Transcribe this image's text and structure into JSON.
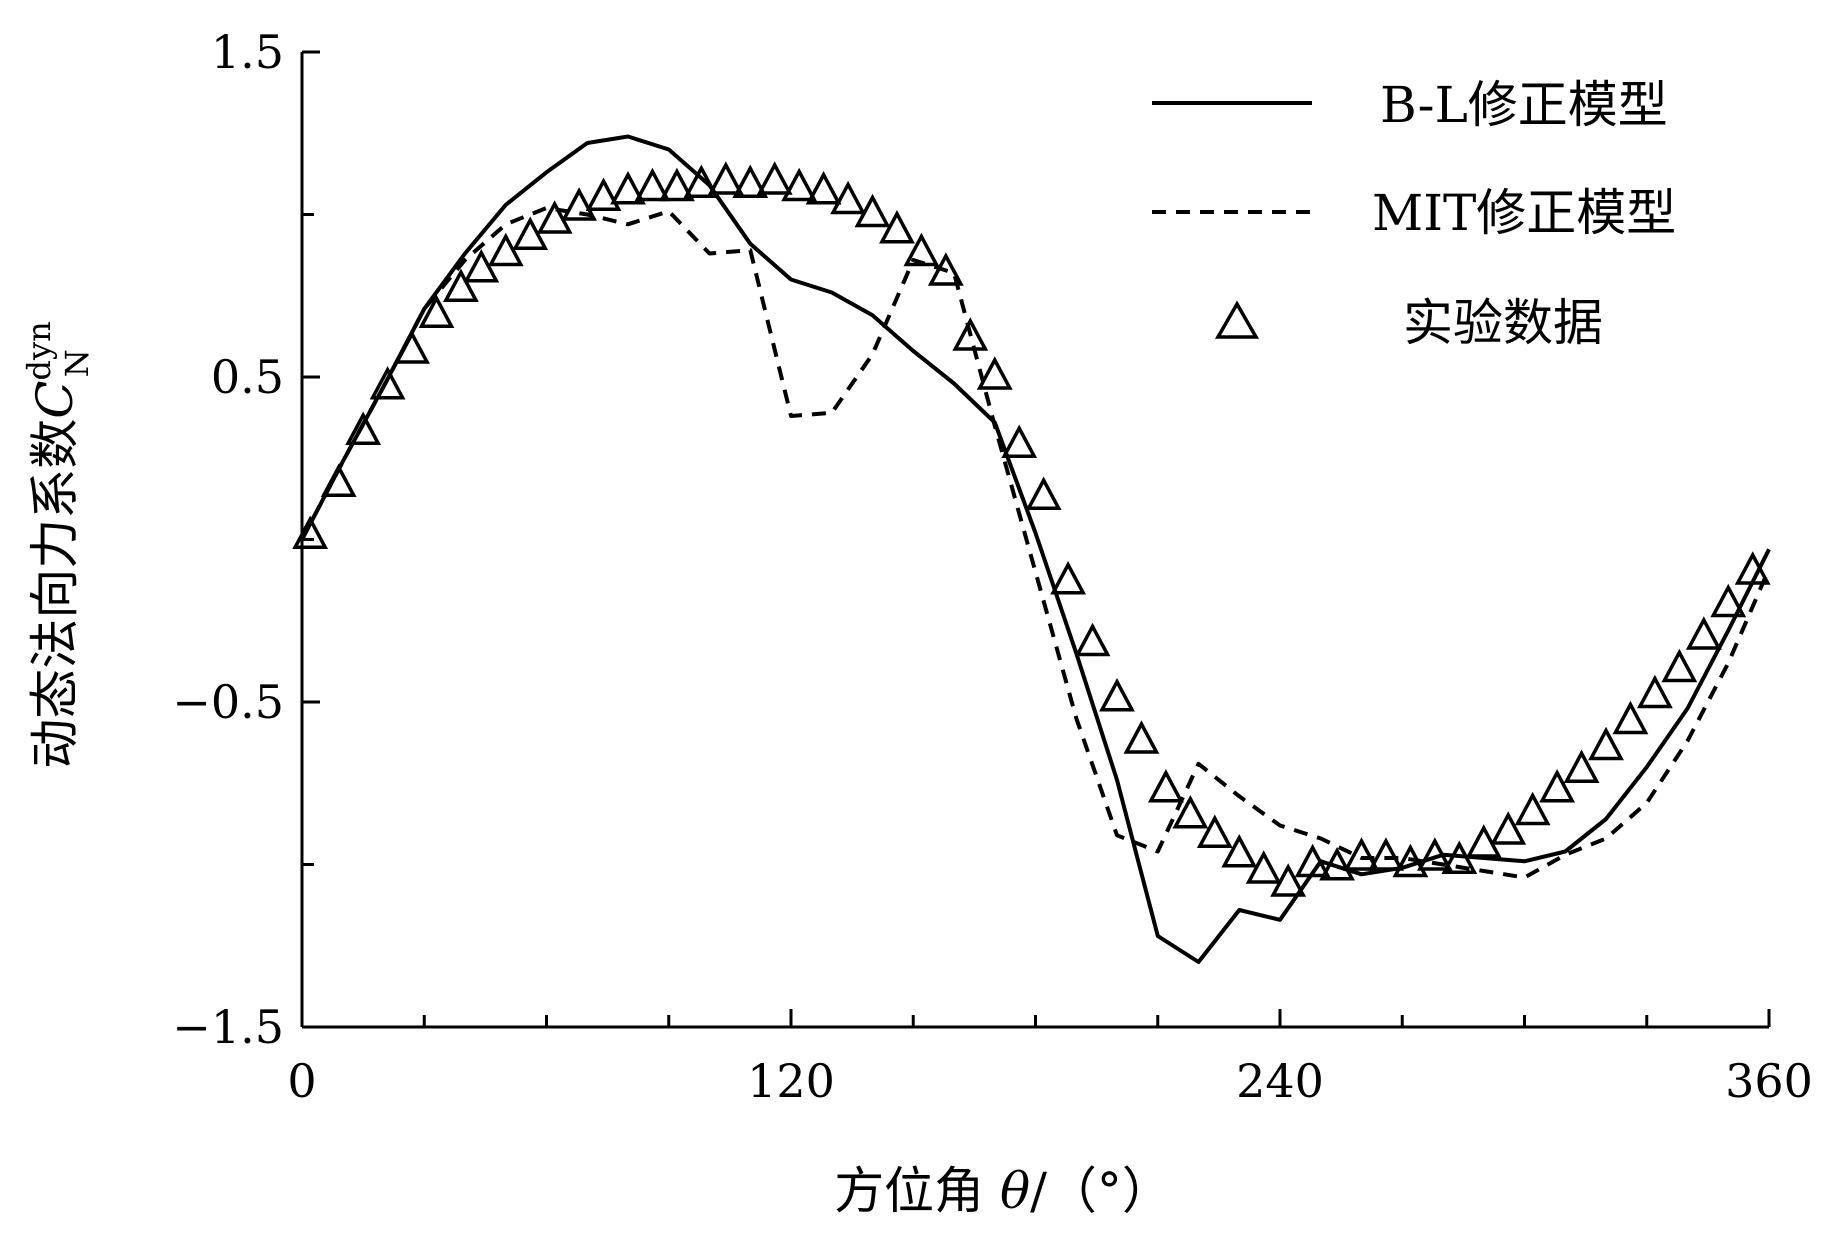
{
  "chart_data": {
    "type": "line",
    "title": "",
    "xlabel": "方位角 θ/（°）",
    "xlabel_parts": {
      "prefix": "方位角 ",
      "symbol": "θ",
      "suffix": "/（°）"
    },
    "ylabel": "动态法向力系数C_N^dyn",
    "ylabel_parts": {
      "prefix": "动态法向力系数",
      "symbol": "C",
      "superscript": "dyn",
      "subscript": "N"
    },
    "xlim": [
      0,
      360
    ],
    "ylim": [
      -1.5,
      1.5
    ],
    "x_ticks": [
      0,
      120,
      240,
      360
    ],
    "x_tick_labels": [
      "0",
      "120",
      "240",
      "360"
    ],
    "y_ticks": [
      1.5,
      0.5,
      -0.5,
      -1.5
    ],
    "y_tick_labels": [
      "1.5",
      "0.5",
      "−0.5",
      "−1.5"
    ],
    "grid": false,
    "legend_position": "top-right",
    "series": [
      {
        "name": "B-L修正模型",
        "style": "solid",
        "x": [
          0,
          10,
          20,
          30,
          40,
          50,
          60,
          70,
          80,
          90,
          100,
          110,
          120,
          130,
          140,
          150,
          160,
          170,
          180,
          190,
          200,
          210,
          220,
          230,
          240,
          250,
          260,
          270,
          280,
          290,
          300,
          310,
          320,
          330,
          340,
          350,
          360
        ],
        "y": [
          0,
          0.24,
          0.47,
          0.71,
          0.88,
          1.03,
          1.13,
          1.22,
          1.24,
          1.2,
          1.09,
          0.91,
          0.8,
          0.76,
          0.69,
          0.58,
          0.48,
          0.36,
          0.02,
          -0.35,
          -0.74,
          -1.22,
          -1.3,
          -1.14,
          -1.17,
          -0.99,
          -1.03,
          -1.01,
          -0.97,
          -0.98,
          -0.99,
          -0.96,
          -0.86,
          -0.7,
          -0.52,
          -0.28,
          -0.03
        ]
      },
      {
        "name": "MIT修正模型",
        "style": "dashed",
        "x": [
          0,
          10,
          20,
          30,
          40,
          50,
          60,
          70,
          80,
          90,
          100,
          110,
          120,
          130,
          140,
          150,
          160,
          170,
          180,
          190,
          200,
          210,
          220,
          230,
          240,
          250,
          260,
          270,
          280,
          290,
          300,
          310,
          320,
          330,
          340,
          350,
          360
        ],
        "y": [
          0,
          0.24,
          0.47,
          0.71,
          0.86,
          0.97,
          1.02,
          1.0,
          0.97,
          1.01,
          0.88,
          0.89,
          0.38,
          0.39,
          0.57,
          0.86,
          0.82,
          0.35,
          -0.1,
          -0.55,
          -0.91,
          -0.96,
          -0.69,
          -0.79,
          -0.88,
          -0.92,
          -0.98,
          -0.98,
          -1.0,
          -1.02,
          -1.04,
          -0.97,
          -0.92,
          -0.81,
          -0.62,
          -0.38,
          -0.09
        ]
      },
      {
        "name": "实验数据",
        "style": "triangle-markers",
        "x": [
          2,
          9,
          15,
          21,
          27,
          33,
          39,
          44,
          50,
          56,
          62,
          68,
          74,
          80,
          86,
          92,
          98,
          104,
          110,
          116,
          122,
          128,
          134,
          140,
          146,
          152,
          158,
          164,
          170,
          176,
          182,
          188,
          194,
          200,
          206,
          212,
          218,
          224,
          230,
          236,
          242,
          248,
          254,
          260,
          266,
          272,
          278,
          284,
          290,
          296,
          302,
          308,
          314,
          320,
          326,
          332,
          338,
          344,
          350,
          356
        ],
        "y": [
          0.01,
          0.17,
          0.33,
          0.47,
          0.58,
          0.69,
          0.77,
          0.83,
          0.88,
          0.93,
          0.98,
          1.02,
          1.05,
          1.07,
          1.08,
          1.08,
          1.09,
          1.1,
          1.09,
          1.1,
          1.08,
          1.07,
          1.04,
          1.0,
          0.95,
          0.88,
          0.82,
          0.62,
          0.5,
          0.29,
          0.13,
          -0.13,
          -0.32,
          -0.49,
          -0.62,
          -0.77,
          -0.85,
          -0.91,
          -0.97,
          -1.02,
          -1.06,
          -1.0,
          -1.01,
          -0.98,
          -0.98,
          -1.0,
          -0.98,
          -0.99,
          -0.94,
          -0.9,
          -0.84,
          -0.77,
          -0.71,
          -0.64,
          -0.56,
          -0.48,
          -0.4,
          -0.3,
          -0.2,
          -0.1
        ]
      }
    ]
  }
}
